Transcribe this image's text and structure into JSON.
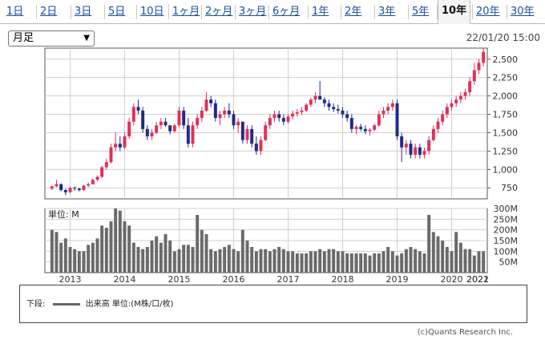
{
  "tabs": [
    {
      "label": "1日",
      "active": false
    },
    {
      "label": "2日",
      "active": false
    },
    {
      "label": "3日",
      "active": false
    },
    {
      "label": "5日",
      "active": false
    },
    {
      "label": "10日",
      "active": false
    },
    {
      "label": "1ヶ月",
      "active": false
    },
    {
      "label": "2ヶ月",
      "active": false
    },
    {
      "label": "3ヶ月",
      "active": false
    },
    {
      "label": "6ヶ月",
      "active": false
    },
    {
      "label": "1年",
      "active": false
    },
    {
      "label": "2年",
      "active": false
    },
    {
      "label": "3年",
      "active": false
    },
    {
      "label": "5年",
      "active": false
    },
    {
      "label": "10年",
      "active": true
    },
    {
      "label": "20年",
      "active": false
    },
    {
      "label": "30年",
      "active": false
    }
  ],
  "period_select": {
    "value": "月足"
  },
  "timestamp": "22/01/20 15:00",
  "volume_unit_label": "単位: M",
  "legend": {
    "lower": "下段:",
    "series": "出来高 単位:(M株/口/枚)"
  },
  "copyright": "(c)Quants Research Inc.",
  "colors": {
    "up": "#e0305a",
    "down": "#1f2a8a",
    "volume": "#6a6a6a",
    "grid": "#cfcfcf",
    "tab_link": "#1a4fa0"
  },
  "chart_data": [
    {
      "type": "candlestick",
      "ylim": [
        600,
        2650
      ],
      "ytick_labels": [
        "750",
        "1,000",
        "1,250",
        "1,500",
        "1,750",
        "2,000",
        "2,250",
        "2,500"
      ],
      "yticks": [
        750,
        1000,
        1250,
        1500,
        1750,
        2000,
        2250,
        2500
      ],
      "xtick_labels": [
        "2013",
        "2014",
        "2015",
        "2016",
        "2017",
        "2018",
        "2019",
        "2020",
        "2021",
        "2022"
      ],
      "candles": [
        [
          740,
          780,
          720,
          770
        ],
        [
          770,
          860,
          760,
          800
        ],
        [
          800,
          810,
          700,
          720
        ],
        [
          720,
          740,
          650,
          690
        ],
        [
          690,
          760,
          680,
          750
        ],
        [
          750,
          770,
          710,
          740
        ],
        [
          740,
          750,
          700,
          720
        ],
        [
          720,
          790,
          710,
          780
        ],
        [
          780,
          820,
          760,
          800
        ],
        [
          800,
          870,
          790,
          860
        ],
        [
          860,
          920,
          840,
          900
        ],
        [
          900,
          1050,
          880,
          1030
        ],
        [
          1030,
          1150,
          1000,
          1100
        ],
        [
          1100,
          1350,
          1080,
          1300
        ],
        [
          1300,
          1500,
          1250,
          1350
        ],
        [
          1350,
          1450,
          1250,
          1300
        ],
        [
          1300,
          1500,
          1280,
          1450
        ],
        [
          1450,
          1700,
          1420,
          1650
        ],
        [
          1650,
          1900,
          1600,
          1850
        ],
        [
          1850,
          1950,
          1750,
          1800
        ],
        [
          1800,
          1850,
          1500,
          1550
        ],
        [
          1550,
          1600,
          1400,
          1450
        ],
        [
          1450,
          1550,
          1400,
          1500
        ],
        [
          1500,
          1650,
          1480,
          1600
        ],
        [
          1600,
          1700,
          1550,
          1650
        ],
        [
          1650,
          1700,
          1580,
          1600
        ],
        [
          1600,
          1600,
          1480,
          1520
        ],
        [
          1520,
          1620,
          1500,
          1600
        ],
        [
          1600,
          1850,
          1580,
          1800
        ],
        [
          1800,
          1850,
          1550,
          1600
        ],
        [
          1600,
          1700,
          1300,
          1350
        ],
        [
          1350,
          1650,
          1300,
          1600
        ],
        [
          1600,
          1750,
          1550,
          1700
        ],
        [
          1700,
          1850,
          1650,
          1800
        ],
        [
          1800,
          2050,
          1780,
          1950
        ],
        [
          1950,
          2000,
          1850,
          1900
        ],
        [
          1900,
          1950,
          1650,
          1700
        ],
        [
          1700,
          1800,
          1600,
          1750
        ],
        [
          1750,
          1850,
          1700,
          1800
        ],
        [
          1800,
          1900,
          1700,
          1750
        ],
        [
          1750,
          1800,
          1550,
          1600
        ],
        [
          1600,
          1700,
          1500,
          1650
        ],
        [
          1650,
          1650,
          1350,
          1400
        ],
        [
          1400,
          1600,
          1350,
          1550
        ],
        [
          1550,
          1600,
          1300,
          1350
        ],
        [
          1350,
          1450,
          1200,
          1250
        ],
        [
          1250,
          1450,
          1200,
          1400
        ],
        [
          1400,
          1650,
          1380,
          1600
        ],
        [
          1600,
          1750,
          1550,
          1700
        ],
        [
          1700,
          1800,
          1650,
          1750
        ],
        [
          1750,
          1800,
          1650,
          1700
        ],
        [
          1700,
          1750,
          1600,
          1650
        ],
        [
          1650,
          1750,
          1620,
          1720
        ],
        [
          1720,
          1800,
          1680,
          1760
        ],
        [
          1760,
          1820,
          1720,
          1780
        ],
        [
          1780,
          1850,
          1740,
          1800
        ],
        [
          1800,
          1900,
          1780,
          1880
        ],
        [
          1880,
          1980,
          1850,
          1950
        ],
        [
          1950,
          2050,
          1900,
          2000
        ],
        [
          2000,
          2200,
          1950,
          1950
        ],
        [
          1950,
          1980,
          1850,
          1900
        ],
        [
          1900,
          1950,
          1800,
          1850
        ],
        [
          1850,
          1900,
          1780,
          1820
        ],
        [
          1820,
          1880,
          1760,
          1800
        ],
        [
          1800,
          1850,
          1700,
          1750
        ],
        [
          1750,
          1800,
          1650,
          1700
        ],
        [
          1700,
          1750,
          1500,
          1550
        ],
        [
          1550,
          1600,
          1480,
          1580
        ],
        [
          1580,
          1620,
          1520,
          1550
        ],
        [
          1550,
          1600,
          1480,
          1520
        ],
        [
          1520,
          1560,
          1460,
          1540
        ],
        [
          1540,
          1620,
          1520,
          1600
        ],
        [
          1600,
          1800,
          1580,
          1750
        ],
        [
          1750,
          1850,
          1700,
          1800
        ],
        [
          1800,
          1900,
          1750,
          1850
        ],
        [
          1850,
          1950,
          1800,
          1900
        ],
        [
          1900,
          1950,
          1400,
          1450
        ],
        [
          1450,
          1500,
          1100,
          1300
        ],
        [
          1300,
          1400,
          1200,
          1350
        ],
        [
          1350,
          1400,
          1150,
          1200
        ],
        [
          1200,
          1350,
          1150,
          1300
        ],
        [
          1300,
          1350,
          1150,
          1200
        ],
        [
          1200,
          1300,
          1150,
          1250
        ],
        [
          1250,
          1450,
          1200,
          1400
        ],
        [
          1400,
          1600,
          1380,
          1550
        ],
        [
          1550,
          1700,
          1500,
          1650
        ],
        [
          1650,
          1800,
          1600,
          1750
        ],
        [
          1750,
          1900,
          1700,
          1850
        ],
        [
          1850,
          1950,
          1800,
          1900
        ],
        [
          1900,
          2000,
          1850,
          1950
        ],
        [
          1950,
          2050,
          1900,
          2000
        ],
        [
          2000,
          2100,
          1950,
          2050
        ],
        [
          2050,
          2250,
          2000,
          2200
        ],
        [
          2200,
          2450,
          2150,
          2350
        ],
        [
          2350,
          2500,
          2300,
          2450
        ],
        [
          2450,
          2650,
          2400,
          2600
        ]
      ]
    },
    {
      "type": "bar",
      "ylim": [
        0,
        300
      ],
      "ytick_labels": [
        "50M",
        "100M",
        "150M",
        "200M",
        "250M",
        "300M"
      ],
      "yticks": [
        50,
        100,
        150,
        200,
        250,
        300
      ],
      "values": [
        200,
        190,
        140,
        160,
        120,
        110,
        100,
        100,
        130,
        140,
        160,
        220,
        210,
        240,
        300,
        290,
        240,
        220,
        140,
        120,
        110,
        120,
        150,
        170,
        140,
        180,
        150,
        100,
        110,
        130,
        130,
        120,
        270,
        200,
        180,
        110,
        100,
        110,
        120,
        130,
        110,
        100,
        200,
        150,
        120,
        100,
        110,
        110,
        100,
        110,
        120,
        110,
        100,
        100,
        90,
        90,
        90,
        100,
        100,
        110,
        100,
        110,
        110,
        100,
        100,
        90,
        90,
        90,
        90,
        90,
        80,
        90,
        90,
        100,
        120,
        100,
        80,
        90,
        110,
        120,
        110,
        100,
        90,
        270,
        190,
        170,
        150,
        120,
        100,
        190,
        140,
        110,
        110,
        80,
        100,
        100
      ]
    }
  ]
}
